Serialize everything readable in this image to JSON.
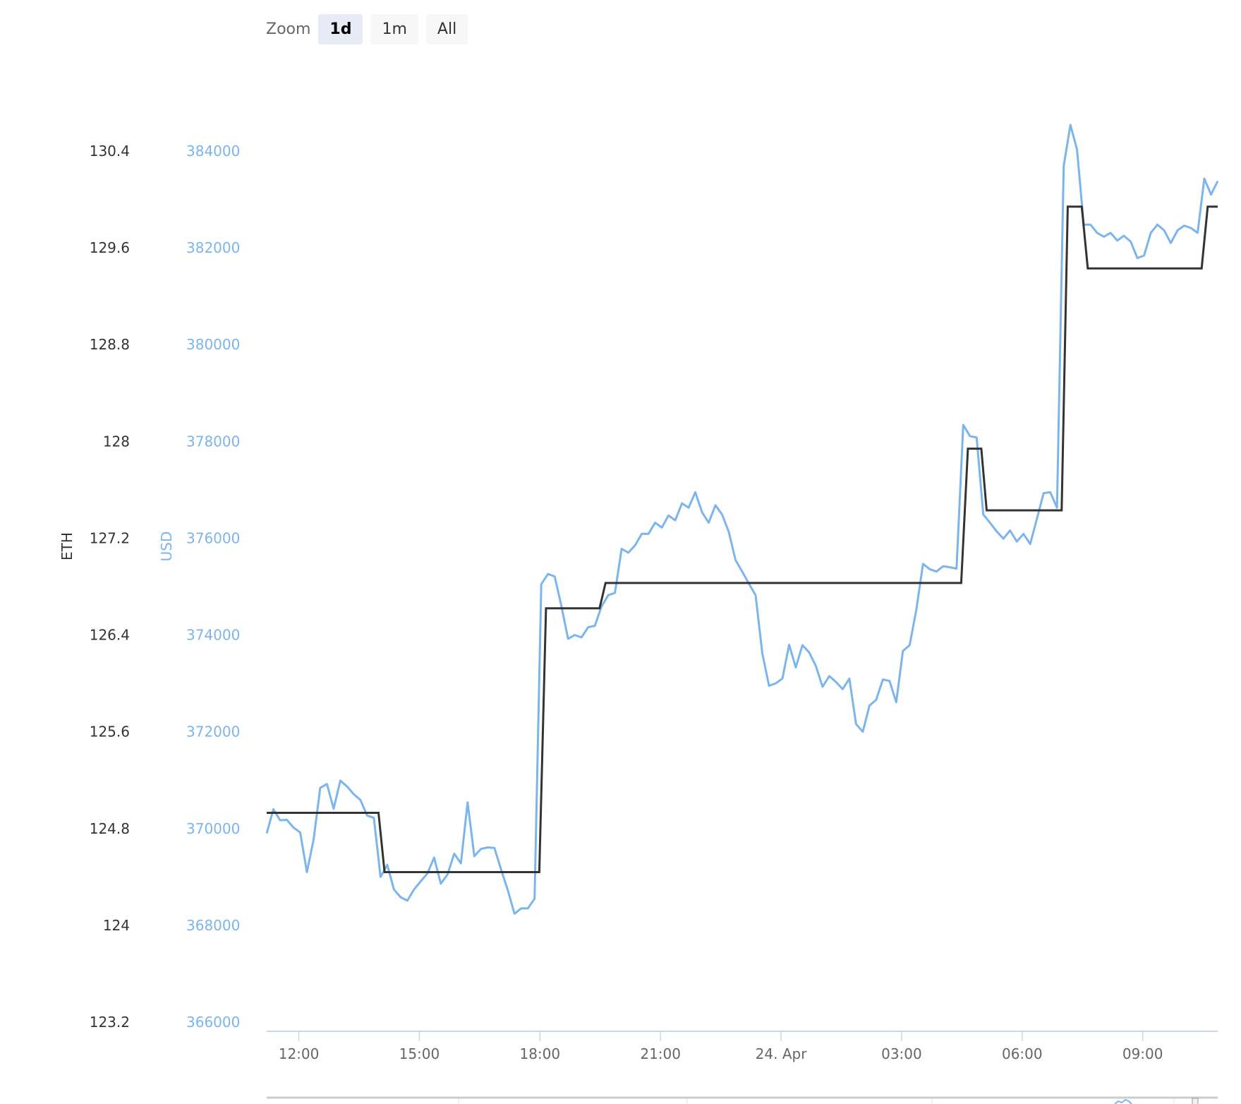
{
  "range_selector": {
    "label": "Zoom",
    "buttons": [
      {
        "label": "1d",
        "active": true
      },
      {
        "label": "1m",
        "active": false
      },
      {
        "label": "All",
        "active": false
      }
    ]
  },
  "chart_data": {
    "type": "line",
    "grid": false,
    "legend": "none",
    "x_ticks": [
      "12:00",
      "15:00",
      "18:00",
      "21:00",
      "24. Apr",
      "03:00",
      "06:00",
      "09:00"
    ],
    "x_tick_times": [
      "23 Apr 12:00",
      "23 Apr 15:00",
      "23 Apr 18:00",
      "23 Apr 21:00",
      "24 Apr 00:00",
      "24 Apr 03:00",
      "24 Apr 06:00",
      "24 Apr 09:00"
    ],
    "axes": {
      "eth": {
        "label": "ETH",
        "ylim": [
          123.2,
          130.4
        ],
        "ticks": [
          "130.4",
          "129.6",
          "128.8",
          "128",
          "127.2",
          "126.4",
          "125.6",
          "124.8",
          "124",
          "123.2"
        ],
        "color": "#333333"
      },
      "usd": {
        "label": "USD",
        "ylim": [
          366000,
          384000
        ],
        "ticks": [
          "384000",
          "382000",
          "380000",
          "378000",
          "376000",
          "374000",
          "372000",
          "370000",
          "368000",
          "366000"
        ],
        "color": "#7cb5ec"
      }
    },
    "series": [
      {
        "axis": "usd",
        "color": "#7cb5ec",
        "x_start": "23 Apr 11:12",
        "x_interval_minutes": 10,
        "values": [
          369900,
          370400,
          370170,
          370180,
          370020,
          369920,
          369100,
          369770,
          370840,
          370920,
          370410,
          370990,
          370870,
          370710,
          370590,
          370270,
          370220,
          369000,
          369250,
          368740,
          368580,
          368510,
          368740,
          368910,
          369070,
          369400,
          368860,
          369050,
          369480,
          369280,
          370540,
          369430,
          369580,
          369610,
          369600,
          369150,
          368730,
          368240,
          368350,
          368350,
          368550,
          375050,
          375260,
          375210,
          374600,
          373920,
          374000,
          373950,
          374160,
          374190,
          374590,
          374820,
          374870,
          375780,
          375700,
          375850,
          376090,
          376090,
          376320,
          376220,
          376470,
          376370,
          376720,
          376630,
          376950,
          376540,
          376320,
          376680,
          376490,
          376130,
          375550,
          375310,
          375060,
          374820,
          373620,
          372950,
          373000,
          373100,
          373800,
          373330,
          373790,
          373640,
          373360,
          372930,
          373150,
          373030,
          372880,
          373100,
          372160,
          372000,
          372540,
          372660,
          373080,
          373050,
          372610,
          373670,
          373790,
          374520,
          375470,
          375360,
          375310,
          375420,
          375400,
          375370,
          378340,
          378110,
          378080,
          376490,
          376320,
          376140,
          375990,
          376160,
          375930,
          376090,
          375880,
          376400,
          376930,
          376950,
          376630,
          383690,
          384540,
          384030,
          382480,
          382480,
          382310,
          382230,
          382310,
          382150,
          382250,
          382130,
          381790,
          381840,
          382310,
          382480,
          382360,
          382100,
          382360,
          382460,
          382410,
          382310,
          383430,
          383100,
          383380
        ]
      },
      {
        "axis": "eth",
        "color": "#333333",
        "points": [
          [
            "23 Apr 11:12",
            124.93
          ],
          [
            "23 Apr 13:59",
            124.93
          ],
          [
            "23 Apr 14:08",
            124.44
          ],
          [
            "23 Apr 17:59",
            124.44
          ],
          [
            "23 Apr 18:09",
            126.62
          ],
          [
            "23 Apr 19:29",
            126.62
          ],
          [
            "23 Apr 19:38",
            126.83
          ],
          [
            "24 Apr 04:29",
            126.83
          ],
          [
            "24 Apr 04:39",
            127.94
          ],
          [
            "24 Apr 04:59",
            127.94
          ],
          [
            "24 Apr 05:07",
            127.43
          ],
          [
            "24 Apr 06:59",
            127.43
          ],
          [
            "24 Apr 07:08",
            129.94
          ],
          [
            "24 Apr 07:29",
            129.94
          ],
          [
            "24 Apr 07:38",
            129.43
          ],
          [
            "24 Apr 10:28",
            129.43
          ],
          [
            "24 Apr 10:37",
            129.94
          ],
          [
            "24 Apr 11:00",
            129.94
          ]
        ]
      }
    ]
  }
}
